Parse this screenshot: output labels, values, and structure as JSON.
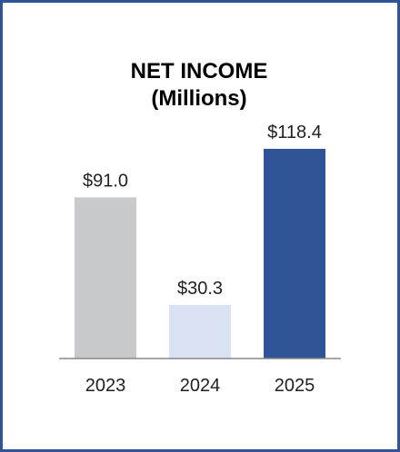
{
  "chart_data": {
    "type": "bar",
    "title": "NET INCOME",
    "subtitle": "(Millions)",
    "categories": [
      "2023",
      "2024",
      "2025"
    ],
    "values": [
      91.0,
      30.3,
      118.4
    ],
    "data_labels": [
      "$91.0",
      "$30.3",
      "$118.4"
    ],
    "colors": [
      "#c8c9cb",
      "#d9e3f4",
      "#2f5597"
    ],
    "xlabel": "",
    "ylabel": "",
    "ylim": [
      0,
      118.4
    ],
    "grid": false,
    "legend": "none"
  },
  "colors": {
    "border": "#2f5496",
    "axis": "#888888"
  }
}
